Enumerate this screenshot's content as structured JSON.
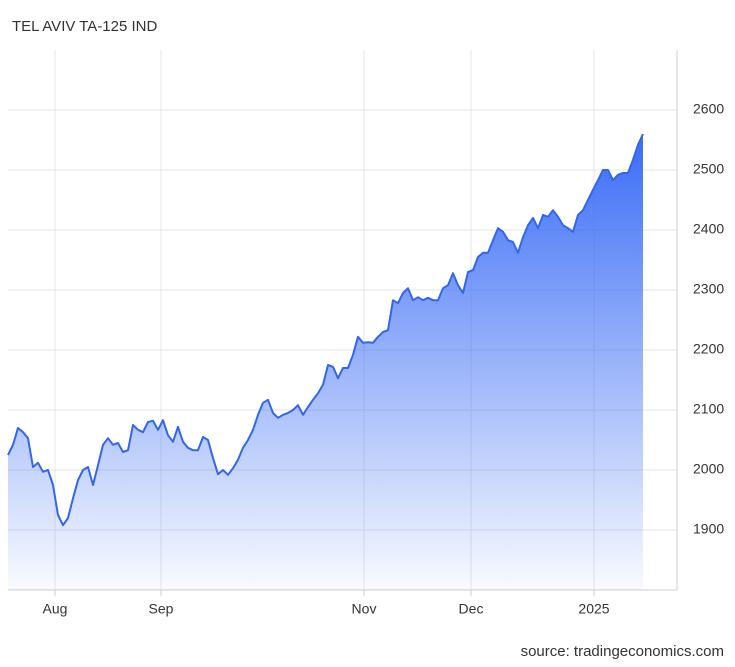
{
  "chart_data": {
    "type": "area",
    "title": "TEL AVIV TA-125 IND",
    "source": "source: tradingeconomics.com",
    "color": "#3366ee",
    "grid": true,
    "values": [
      2025,
      2042,
      2070,
      2063,
      2053,
      2005,
      2012,
      1997,
      2000,
      1975,
      1925,
      1908,
      1920,
      1953,
      1983,
      2000,
      2005,
      1975,
      2008,
      2042,
      2053,
      2042,
      2045,
      2030,
      2033,
      2075,
      2067,
      2063,
      2080,
      2082,
      2067,
      2083,
      2058,
      2047,
      2072,
      2047,
      2037,
      2033,
      2033,
      2055,
      2050,
      2020,
      1993,
      2000,
      1992,
      2003,
      2017,
      2037,
      2050,
      2067,
      2092,
      2112,
      2117,
      2095,
      2087,
      2092,
      2095,
      2100,
      2108,
      2092,
      2105,
      2117,
      2128,
      2142,
      2175,
      2172,
      2153,
      2170,
      2170,
      2192,
      2222,
      2212,
      2213,
      2212,
      2222,
      2230,
      2233,
      2283,
      2278,
      2295,
      2303,
      2283,
      2288,
      2283,
      2287,
      2283,
      2283,
      2303,
      2308,
      2328,
      2308,
      2295,
      2330,
      2333,
      2355,
      2362,
      2362,
      2383,
      2403,
      2397,
      2383,
      2380,
      2362,
      2388,
      2408,
      2420,
      2403,
      2425,
      2422,
      2433,
      2422,
      2408,
      2403,
      2397,
      2425,
      2433,
      2450,
      2467,
      2483,
      2500,
      2500,
      2483,
      2492,
      2495,
      2495,
      2517,
      2542,
      2560
    ],
    "xlim": [
      0,
      133.8
    ],
    "xticks": [
      {
        "value": 9.4,
        "label": "Aug"
      },
      {
        "value": 30.6,
        "label": "Sep"
      },
      {
        "value": 71.2,
        "label": "Nov"
      },
      {
        "value": 92.6,
        "label": "Dec"
      },
      {
        "value": 117.2,
        "label": "2025"
      }
    ],
    "ylim": [
      1800,
      2700
    ],
    "yticks": [
      1900,
      2000,
      2100,
      2200,
      2300,
      2400,
      2500,
      2600
    ]
  }
}
